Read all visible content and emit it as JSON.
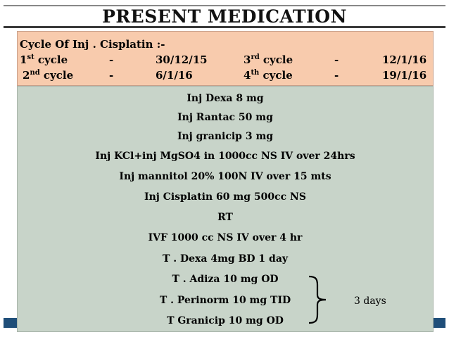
{
  "slide": {
    "title": "PRESENT MEDICATION",
    "cycle_box": {
      "heading": "Cycle Of  Inj . Cisplatin  :-",
      "cycles": [
        {
          "ordinal": "1",
          "suffix": "st",
          "word": " cycle",
          "dash": "-",
          "date": "30/12/15"
        },
        {
          "ordinal": "2",
          "suffix": "nd",
          "word": " cycle",
          "dash": "-",
          "date": "6/1/16"
        },
        {
          "ordinal": "3",
          "suffix": "rd",
          "word": " cycle",
          "dash": "-",
          "date": "12/1/16"
        },
        {
          "ordinal": "4",
          "suffix": "th",
          "word": " cycle",
          "dash": "-",
          "date": "19/1/16"
        }
      ]
    },
    "medications": [
      "Inj Dexa 8 mg",
      "Inj Rantac 50 mg",
      "Inj granicip 3 mg",
      "Inj KCl+inj MgSO4 in 1000cc NS IV over 24hrs",
      "Inj mannitol 20% 100N IV over 15 mts",
      "Inj Cisplatin 60 mg 500cc NS",
      "RT",
      "IVF  1000 cc NS  IV over 4 hr",
      "T . Dexa 4mg BD 1 day",
      "T . Adiza 10 mg OD",
      "T . Perinorm 10 mg TID",
      "T Granicip 10 mg OD"
    ],
    "duration_note": "3 days",
    "colors": {
      "cycle_box_bg": "#f8cbad",
      "med_box_bg": "#c8d4c9",
      "accent_bar": "#1f4e79"
    }
  }
}
